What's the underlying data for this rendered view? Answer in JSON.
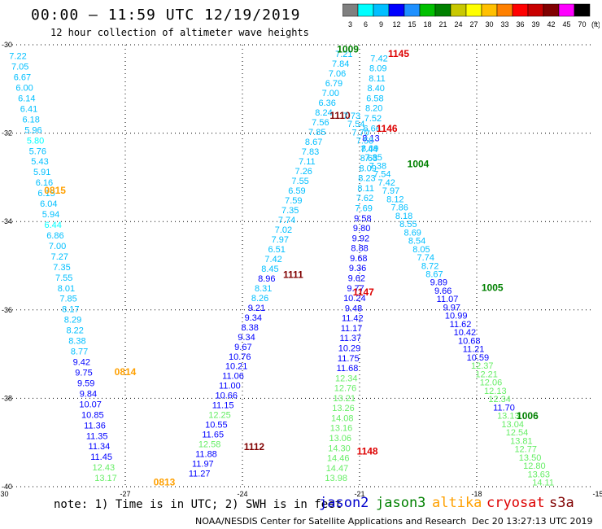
{
  "title": "00:00 – 11:59 UTC 12/19/2019",
  "subtitle": "12 hour collection of altimeter wave heights",
  "colorbar": {
    "unit": "(ft)",
    "ticks": [
      "3",
      "6",
      "9",
      "12",
      "15",
      "18",
      "21",
      "24",
      "27",
      "30",
      "33",
      "36",
      "39",
      "42",
      "45",
      "70"
    ],
    "colors": [
      "#808080",
      "#00ffff",
      "#00bfff",
      "#0000ff",
      "#1e90ff",
      "#00c000",
      "#008000",
      "#c8c800",
      "#ffff00",
      "#ffc000",
      "#ff8000",
      "#ff0000",
      "#c80000",
      "#800000",
      "#ff00ff",
      "#000000"
    ]
  },
  "note": "note:  1) Time is in UTC;  2) SWH is in feet",
  "legend": [
    {
      "name": "jason2",
      "color": "#0000cc"
    },
    {
      "name": "jason3",
      "color": "#008000"
    },
    {
      "name": "altika",
      "color": "#ffa000"
    },
    {
      "name": "cryosat",
      "color": "#dd0000"
    },
    {
      "name": "s3a",
      "color": "#800000"
    }
  ],
  "credit": "NOAA/NESDIS Center for Satellite Applications and Research",
  "stamp": "Dec 20 13:27:13 UTC 2019",
  "chart_data": {
    "type": "scatter",
    "xlim": [
      -30,
      -15
    ],
    "ylim": [
      -40,
      -30
    ],
    "x_ticks": [
      -27,
      -24,
      -21,
      -18,
      -15
    ],
    "y_ticks": [
      -30,
      -32,
      -34,
      -36,
      -38,
      -40
    ],
    "grid": true,
    "tracks": [
      {
        "id": "0815",
        "sat": "altika",
        "label": "0815",
        "label_pos": [
          -28.8,
          -33.3
        ],
        "start": [
          -29.75,
          -30.25
        ],
        "end": [
          -27.5,
          -39.8
        ],
        "values": [
          "7.22",
          "7.05",
          "6.67",
          "6.00",
          "6.14",
          "6.41",
          "6.18",
          "5.96",
          "5.80",
          "5.76",
          "5.43",
          "5.91",
          "6.16",
          "6.15",
          "6.04",
          "5.94",
          "6.44",
          "6.86",
          "7.00",
          "7.27",
          "7.35",
          "7.55",
          "8.01",
          "7.85",
          "8.17",
          "8.29",
          "8.22",
          "8.38",
          "8.77",
          "9.42",
          "9.75",
          "9.59",
          "9.84",
          "10.07",
          "10.85",
          "11.36",
          "11.35",
          "11.34",
          "11.45",
          "12.43",
          "13.17"
        ],
        "colors": [
          "#00bfff",
          "#00bfff",
          "#00bfff",
          "#00bfff",
          "#00bfff",
          "#00bfff",
          "#00bfff",
          "#00bfff",
          "#00ffff",
          "#00bfff",
          "#00bfff",
          "#00bfff",
          "#00bfff",
          "#00bfff",
          "#00bfff",
          "#00bfff",
          "#00ffff",
          "#00bfff",
          "#00bfff",
          "#00bfff",
          "#00bfff",
          "#00bfff",
          "#00bfff",
          "#00bfff",
          "#00bfff",
          "#00bfff",
          "#00bfff",
          "#00bfff",
          "#00bfff",
          "#0000ff",
          "#0000ff",
          "#0000ff",
          "#0000ff",
          "#0000ff",
          "#0000ff",
          "#0000ff",
          "#0000ff",
          "#0000ff",
          "#0000ff",
          "#66ee66",
          "#66ee66"
        ]
      },
      {
        "id": "0814",
        "sat": "altika",
        "label": "0814",
        "label_pos": [
          -27.0,
          -37.4
        ],
        "start": [
          -27.55,
          -37.6
        ],
        "end": [
          -27.55,
          -37.6
        ],
        "values": [],
        "colors": []
      },
      {
        "id": "0813",
        "sat": "altika",
        "label": "0813",
        "label_pos": [
          -26.0,
          -39.9
        ],
        "start": [
          -26.0,
          -39.9
        ],
        "end": [
          -26.0,
          -39.9
        ],
        "values": [],
        "colors": []
      },
      {
        "id": "1111",
        "sat": "s3a",
        "label": "1111",
        "label_pos": [
          -22.7,
          -35.2
        ],
        "start": [
          -21.4,
          -30.2
        ],
        "end": [
          -25.1,
          -39.7
        ],
        "values": [
          "7.21",
          "7.84",
          "7.06",
          "6.79",
          "7.00",
          "6.36",
          "8.24",
          "7.56",
          "7.85",
          "8.67",
          "7.83",
          "7.11",
          "7.26",
          "7.55",
          "6.59",
          "7.59",
          "7.35",
          "7.74",
          "7.02",
          "7.97",
          "6.51",
          "7.42",
          "8.45",
          "8.96",
          "8.31",
          "8.26",
          "9.21",
          "9.34",
          "8.38",
          "9.34",
          "9.67",
          "10.76",
          "10.21",
          "11.06",
          "11.00",
          "10.66",
          "11.15",
          "12.25",
          "10.55",
          "11.65",
          "12.58",
          "11.88",
          "11.97",
          "11.27"
        ],
        "colors": [
          "#00bfff",
          "#00bfff",
          "#00bfff",
          "#00bfff",
          "#00bfff",
          "#00bfff",
          "#00bfff",
          "#00bfff",
          "#00bfff",
          "#00bfff",
          "#00bfff",
          "#00bfff",
          "#00bfff",
          "#00bfff",
          "#00bfff",
          "#00bfff",
          "#00bfff",
          "#00bfff",
          "#00bfff",
          "#00bfff",
          "#00bfff",
          "#00bfff",
          "#00bfff",
          "#0000ff",
          "#00bfff",
          "#00bfff",
          "#0000ff",
          "#0000ff",
          "#0000ff",
          "#0000ff",
          "#0000ff",
          "#0000ff",
          "#0000ff",
          "#0000ff",
          "#0000ff",
          "#0000ff",
          "#0000ff",
          "#66ee66",
          "#0000ff",
          "#0000ff",
          "#66ee66",
          "#0000ff",
          "#0000ff",
          "#0000ff"
        ]
      },
      {
        "id": "1112",
        "sat": "s3a",
        "label": "1112",
        "label_pos": [
          -23.7,
          -39.1
        ],
        "start": [
          -23.7,
          -39.1
        ],
        "end": [
          -23.7,
          -39.1
        ],
        "values": [],
        "colors": []
      },
      {
        "id": "1110",
        "sat": "s3a",
        "label": "1110",
        "label_pos": [
          -21.5,
          -31.6
        ],
        "start": [
          -21.5,
          -31.6
        ],
        "end": [
          -21.5,
          -31.6
        ],
        "values": [],
        "colors": []
      },
      {
        "id": "1009",
        "sat": "jason3",
        "label": "1009",
        "label_pos": [
          -21.3,
          -30.1
        ],
        "start": [
          -21.3,
          -30.1
        ],
        "end": [
          -21.3,
          -30.1
        ],
        "values": [],
        "colors": []
      },
      {
        "id": "1147",
        "sat": "cryosat",
        "label": "1147",
        "label_pos": [
          -20.9,
          -35.6
        ],
        "start": [
          -20.5,
          -30.3
        ],
        "end": [
          -21.6,
          -39.8
        ],
        "values": [
          "7.42",
          "8.09",
          "8.11",
          "8.40",
          "6.58",
          "8.20",
          "7.52",
          "6.66",
          "8.13",
          "8.09",
          "8.63",
          "8.09",
          "8.23",
          "8.11",
          "7.62",
          "7.69",
          "9.58",
          "9.80",
          "9.92",
          "8.88",
          "9.68",
          "9.36",
          "9.62",
          "9.77",
          "10.24",
          "9.48",
          "11.42",
          "11.17",
          "11.37",
          "10.29",
          "11.75",
          "11.68",
          "12.34",
          "12.76",
          "13.21",
          "13.26",
          "14.08",
          "13.16",
          "13.06",
          "14.30",
          "14.46",
          "14.47",
          "13.98"
        ],
        "colors": [
          "#00bfff",
          "#00bfff",
          "#00bfff",
          "#00bfff",
          "#00bfff",
          "#00bfff",
          "#00bfff",
          "#00bfff",
          "#0000ff",
          "#00bfff",
          "#00bfff",
          "#00bfff",
          "#00bfff",
          "#00bfff",
          "#00bfff",
          "#00bfff",
          "#0000ff",
          "#0000ff",
          "#0000ff",
          "#0000ff",
          "#0000ff",
          "#0000ff",
          "#0000ff",
          "#0000ff",
          "#0000ff",
          "#0000ff",
          "#0000ff",
          "#0000ff",
          "#0000ff",
          "#0000ff",
          "#0000ff",
          "#0000ff",
          "#66ee66",
          "#66ee66",
          "#66ee66",
          "#66ee66",
          "#66ee66",
          "#66ee66",
          "#66ee66",
          "#66ee66",
          "#66ee66",
          "#66ee66",
          "#66ee66"
        ]
      },
      {
        "id": "1145",
        "sat": "cryosat",
        "label": "1145",
        "label_pos": [
          -20.0,
          -30.2
        ],
        "start": [
          -20.0,
          -30.2
        ],
        "end": [
          -20.0,
          -30.2
        ],
        "values": [],
        "colors": []
      },
      {
        "id": "1146",
        "sat": "cryosat",
        "label": "1146",
        "label_pos": [
          -20.3,
          -31.9
        ],
        "start": [
          -20.3,
          -31.9
        ],
        "end": [
          -20.3,
          -31.9
        ],
        "values": [],
        "colors": []
      },
      {
        "id": "1148",
        "sat": "cryosat",
        "label": "1148",
        "label_pos": [
          -20.8,
          -39.2
        ],
        "start": [
          -20.8,
          -39.2
        ],
        "end": [
          -20.8,
          -39.2
        ],
        "values": [],
        "colors": []
      },
      {
        "id": "1004",
        "sat": "jason3",
        "label": "1004",
        "label_pos": [
          -19.5,
          -32.7
        ],
        "start": [
          -21.2,
          -31.6
        ],
        "end": [
          -16.3,
          -39.9
        ],
        "values": [
          "7.73",
          "7.54",
          "7.70",
          "7.58",
          "7.44",
          "7.85",
          "7.38",
          "7.54",
          "7.42",
          "7.97",
          "8.12",
          "7.86",
          "8.18",
          "8.55",
          "8.69",
          "8.54",
          "8.05",
          "7.74",
          "8.72",
          "8.67",
          "9.89",
          "9.66",
          "11.07",
          "9.97",
          "10.99",
          "11.62",
          "10.42",
          "10.68",
          "11.21",
          "10.59",
          "12.37",
          "12.21",
          "12.06",
          "12.13",
          "12.34",
          "11.70",
          "13.13",
          "13.04",
          "12.54",
          "13.81",
          "12.77",
          "13.50",
          "12.80",
          "13.63",
          "14.11"
        ],
        "colors": [
          "#00bfff",
          "#00bfff",
          "#00bfff",
          "#00bfff",
          "#00bfff",
          "#00bfff",
          "#00bfff",
          "#00bfff",
          "#00bfff",
          "#00bfff",
          "#00bfff",
          "#00bfff",
          "#00bfff",
          "#00bfff",
          "#00bfff",
          "#00bfff",
          "#00bfff",
          "#00bfff",
          "#00bfff",
          "#00bfff",
          "#0000ff",
          "#0000ff",
          "#0000ff",
          "#0000ff",
          "#0000ff",
          "#0000ff",
          "#0000ff",
          "#0000ff",
          "#0000ff",
          "#0000ff",
          "#66ee66",
          "#66ee66",
          "#66ee66",
          "#66ee66",
          "#66ee66",
          "#0000ff",
          "#66ee66",
          "#66ee66",
          "#66ee66",
          "#66ee66",
          "#66ee66",
          "#66ee66",
          "#66ee66",
          "#66ee66",
          "#66ee66"
        ]
      },
      {
        "id": "1005",
        "sat": "jason3",
        "label": "1005",
        "label_pos": [
          -17.6,
          -35.5
        ],
        "start": [
          -17.6,
          -35.5
        ],
        "end": [
          -17.6,
          -35.5
        ],
        "values": [],
        "colors": []
      },
      {
        "id": "1006",
        "sat": "jason3",
        "label": "1006",
        "label_pos": [
          -16.7,
          -38.4
        ],
        "start": [
          -16.7,
          -38.4
        ],
        "end": [
          -16.7,
          -38.4
        ],
        "values": [],
        "colors": []
      }
    ]
  }
}
